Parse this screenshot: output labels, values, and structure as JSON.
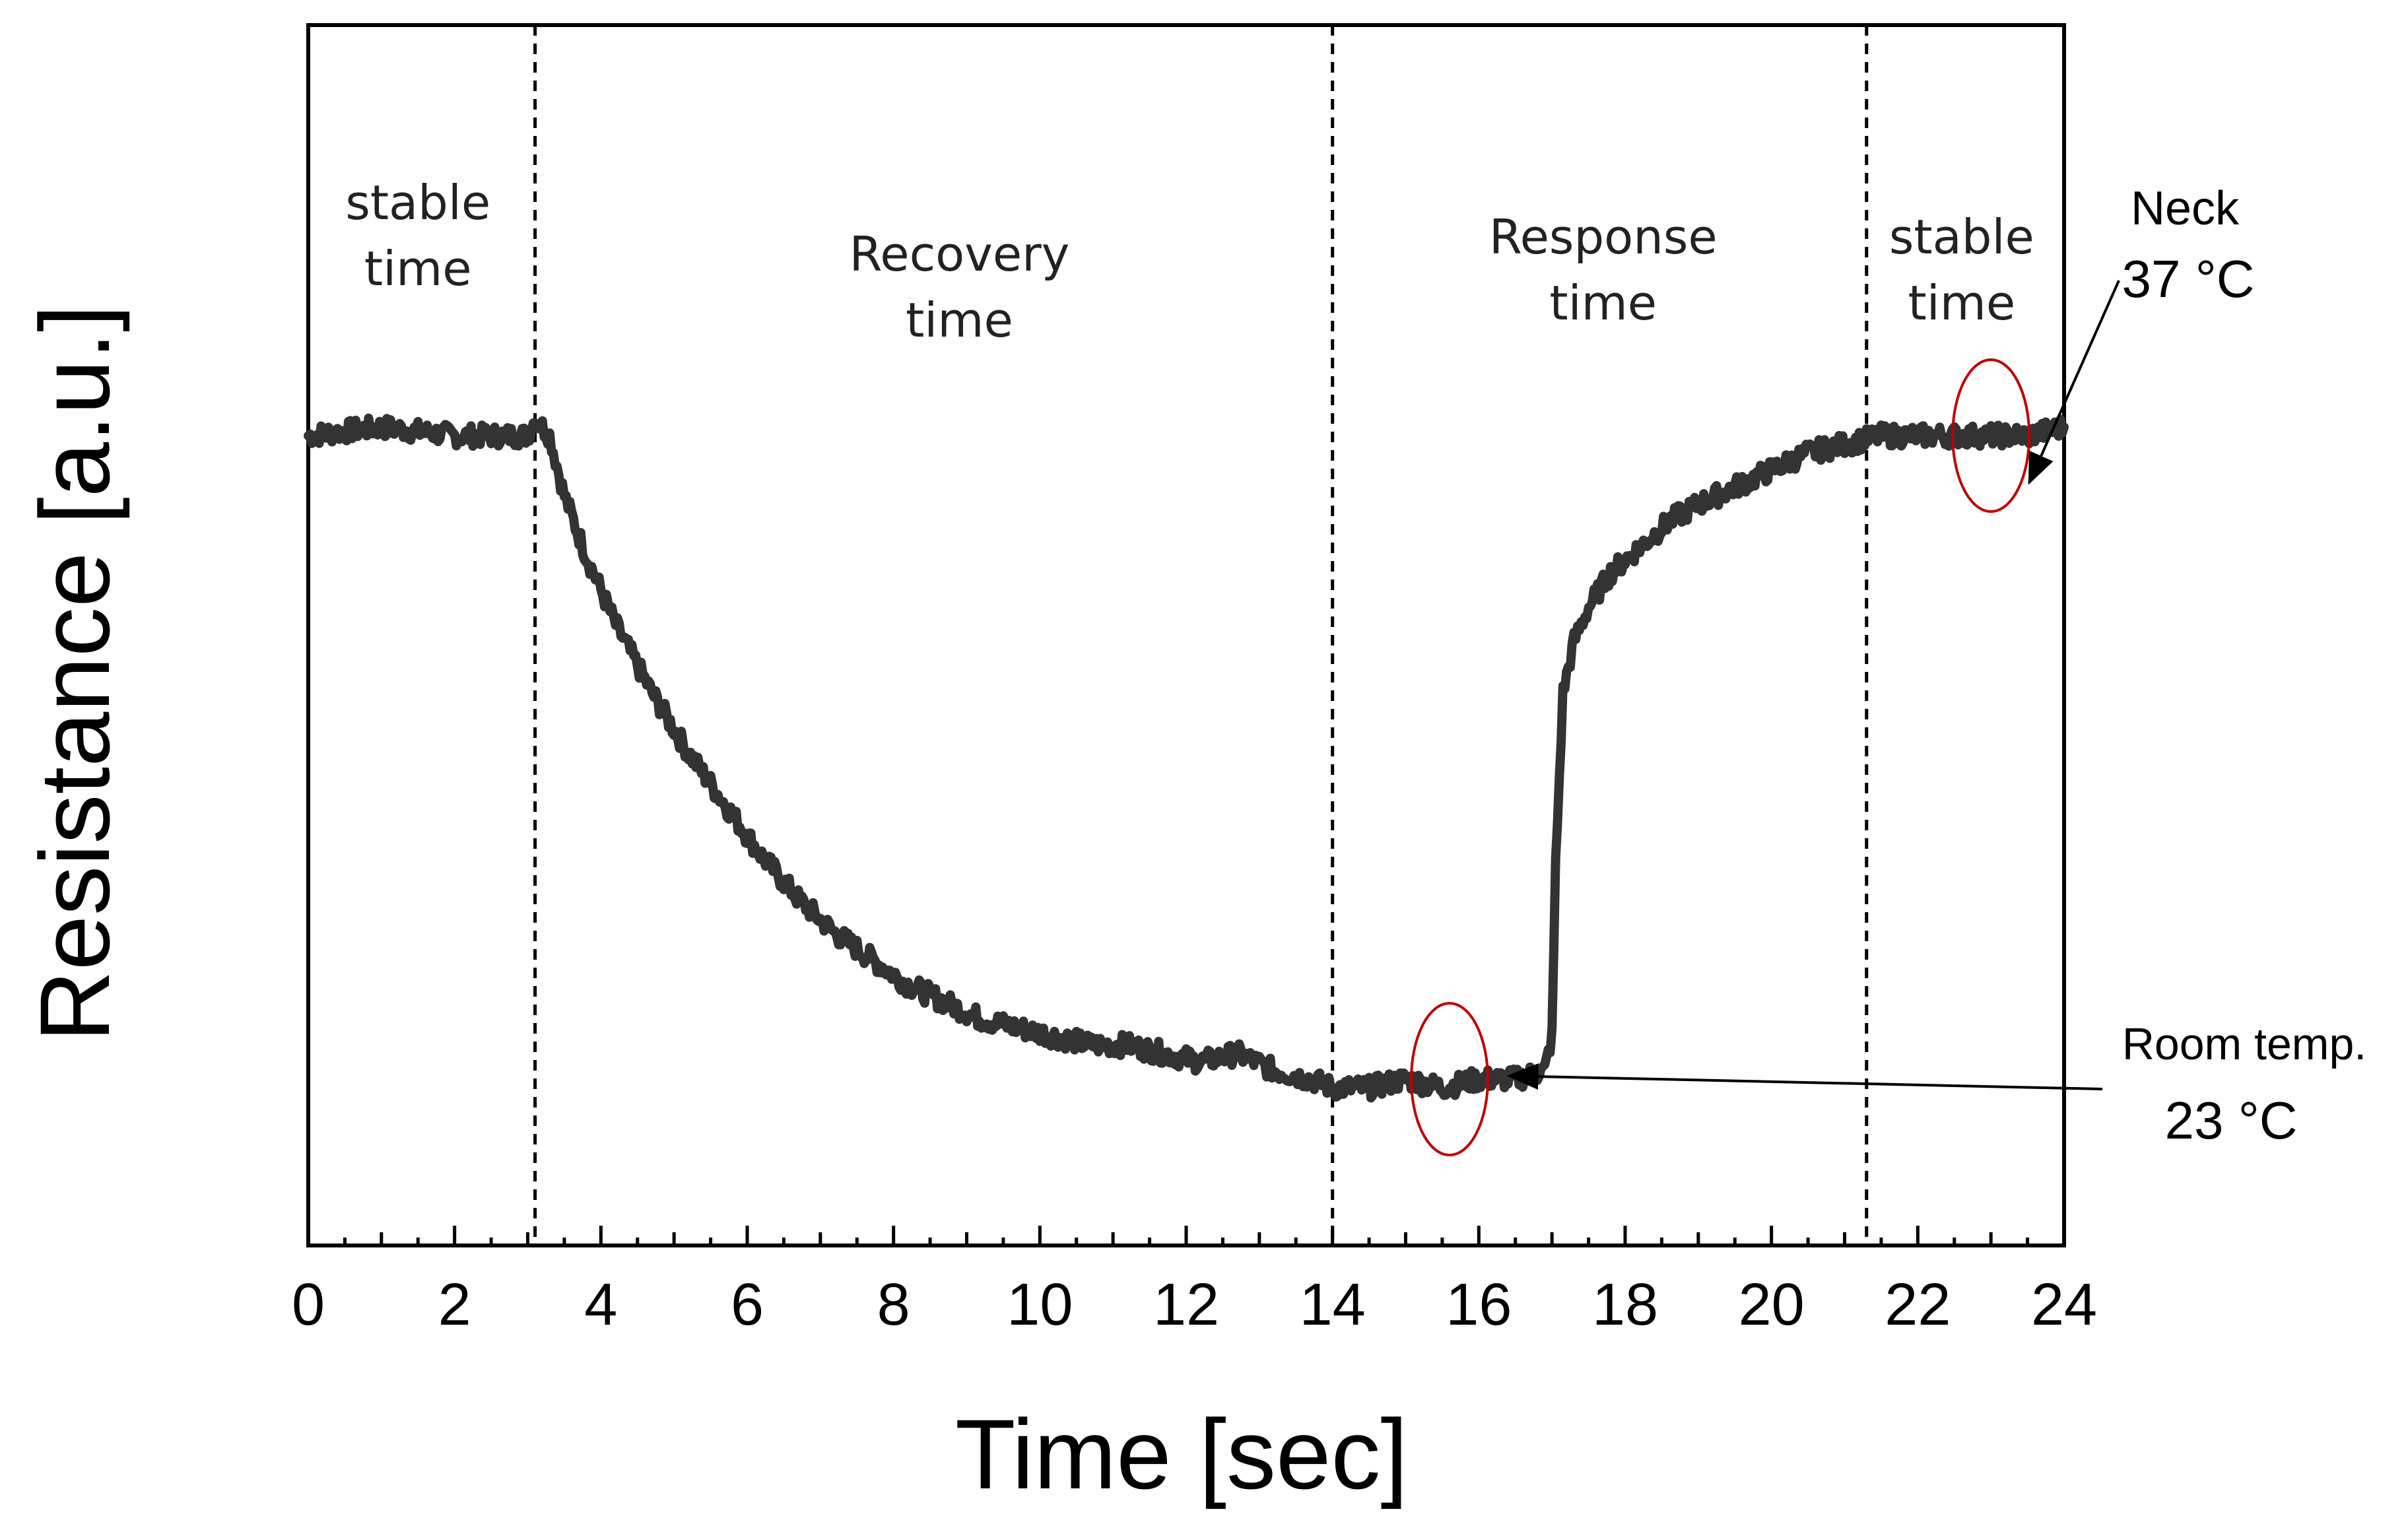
{
  "chart_data": {
    "type": "line",
    "title": "",
    "xlabel": "Time [sec]",
    "ylabel": "Resistance [a.u.]",
    "xlim": [
      0,
      24
    ],
    "ylim": [
      0,
      1
    ],
    "x_ticks": [
      0,
      2,
      4,
      6,
      8,
      10,
      12,
      14,
      16,
      18,
      20,
      22,
      24
    ],
    "x_tick_labels": [
      "0",
      "2",
      "4",
      "6",
      "8",
      "10",
      "12",
      "14",
      "16",
      "18",
      "20",
      "22",
      "24"
    ],
    "y_tick_labels": [],
    "grid": false,
    "series": [
      {
        "name": "Resistance",
        "color": "#333333",
        "x": [
          0,
          1,
          2,
          3.0,
          3.1,
          3.3,
          3.5,
          3.8,
          4.2,
          4.7,
          5.2,
          5.7,
          6.2,
          6.7,
          7.2,
          7.7,
          8.2,
          8.7,
          9.2,
          9.7,
          10.2,
          10.7,
          11.2,
          11.7,
          12.2,
          12.7,
          13.2,
          13.7,
          14.0,
          14.5,
          15.0,
          15.5,
          16.0,
          16.5,
          16.9,
          17.0,
          17.05,
          17.15,
          17.3,
          17.5,
          17.8,
          18.2,
          18.6,
          19.0,
          19.5,
          20.0,
          20.5,
          21.0,
          21.5,
          22.0,
          22.5,
          23.0,
          23.5,
          24.0
        ],
        "y": [
          0.8,
          0.81,
          0.8,
          0.8,
          0.82,
          0.8,
          0.73,
          0.66,
          0.58,
          0.5,
          0.43,
          0.37,
          0.31,
          0.26,
          0.22,
          0.19,
          0.16,
          0.14,
          0.12,
          0.11,
          0.1,
          0.09,
          0.09,
          0.08,
          0.07,
          0.08,
          0.06,
          0.05,
          0.04,
          0.04,
          0.05,
          0.04,
          0.05,
          0.05,
          0.06,
          0.1,
          0.3,
          0.5,
          0.56,
          0.6,
          0.64,
          0.67,
          0.7,
          0.72,
          0.74,
          0.76,
          0.78,
          0.79,
          0.8,
          0.8,
          0.8,
          0.8,
          0.8,
          0.81
        ]
      }
    ],
    "vertical_lines": [
      3.1,
      14.0,
      21.3
    ],
    "phase_labels": [
      {
        "line1": "stable",
        "line2": "time",
        "x": 1.5,
        "y": 0.96
      },
      {
        "line1": "Recovery",
        "line2": "time",
        "x": 8.9,
        "y": 0.9
      },
      {
        "line1": "Response",
        "line2": "time",
        "x": 17.7,
        "y": 0.92
      },
      {
        "line1": "stable",
        "line2": "time",
        "x": 22.6,
        "y": 0.92
      }
    ],
    "highlights": [
      {
        "x": 15.6,
        "y": 0.05,
        "color": "#c00000"
      },
      {
        "x": 23.0,
        "y": 0.8,
        "color": "#c00000"
      }
    ],
    "annotations": [
      {
        "line1": "Neck",
        "line2": "37 °C",
        "target_x": 23.3,
        "target_y": 0.73
      },
      {
        "line1": "Room temp.",
        "line2": "23 °C",
        "target_x": 16.1,
        "target_y": 0.0
      }
    ]
  }
}
